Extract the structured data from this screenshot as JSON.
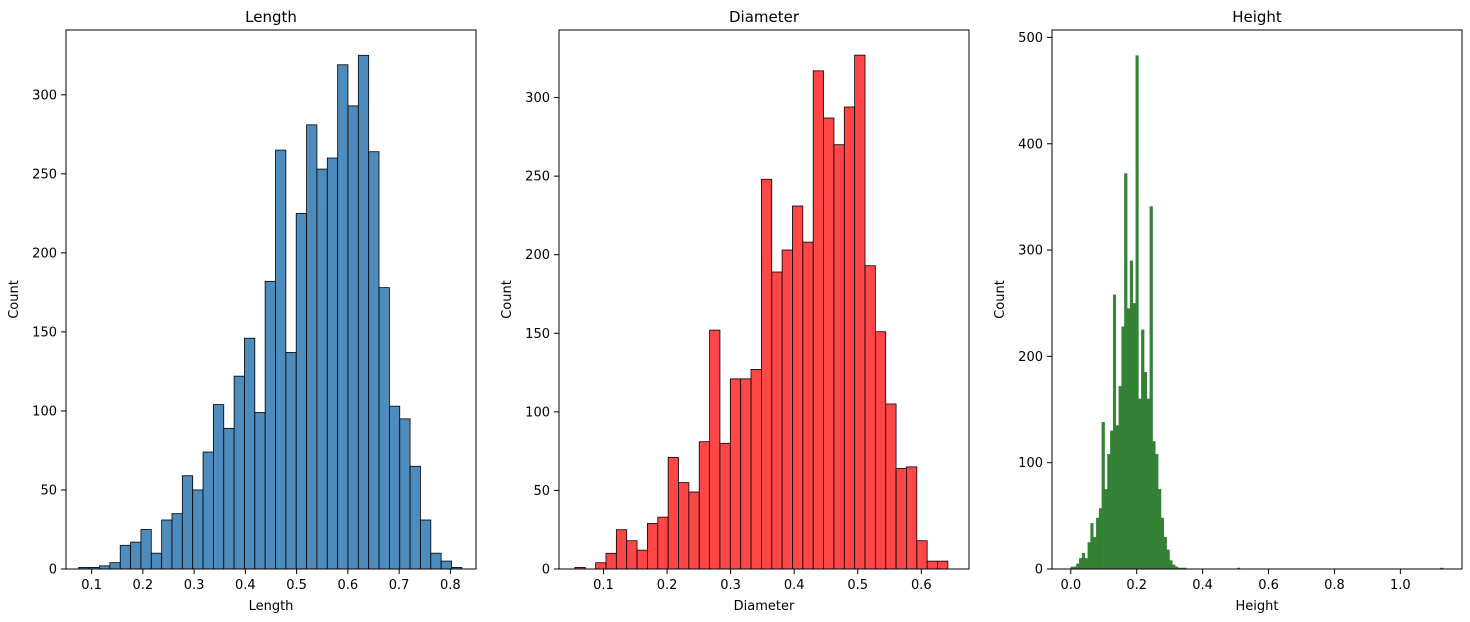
{
  "chart_data": [
    {
      "type": "bar",
      "title": "Length",
      "xlabel": "Length",
      "ylabel": "Count",
      "xlim": [
        0.05,
        0.85
      ],
      "ylim": [
        0,
        341
      ],
      "xticks": [
        0.1,
        0.2,
        0.3,
        0.4,
        0.5,
        0.6,
        0.7,
        0.8
      ],
      "xtick_labels": [
        "0.1",
        "0.2",
        "0.3",
        "0.4",
        "0.5",
        "0.6",
        "0.7",
        "0.8"
      ],
      "yticks": [
        0,
        50,
        100,
        150,
        200,
        250,
        300
      ],
      "ytick_labels": [
        "0",
        "50",
        "100",
        "150",
        "200",
        "250",
        "300"
      ],
      "color": "#3a7fb5",
      "bin_start": 0.075,
      "bin_width": 0.0202,
      "values": [
        1,
        1,
        2,
        4,
        15,
        17,
        25,
        10,
        31,
        35,
        59,
        50,
        74,
        104,
        89,
        122,
        146,
        99,
        182,
        265,
        137,
        225,
        281,
        253,
        260,
        319,
        293,
        325,
        264,
        178,
        103,
        95,
        65,
        31,
        10,
        5,
        1
      ],
      "grid": false
    },
    {
      "type": "bar",
      "title": "Diameter",
      "xlabel": "Diameter",
      "ylabel": "Count",
      "xlim": [
        0.03,
        0.675
      ],
      "ylim": [
        0,
        343
      ],
      "xticks": [
        0.1,
        0.2,
        0.3,
        0.4,
        0.5,
        0.6
      ],
      "xtick_labels": [
        "0.1",
        "0.2",
        "0.3",
        "0.4",
        "0.5",
        "0.6"
      ],
      "yticks": [
        0,
        50,
        100,
        150,
        200,
        250,
        300
      ],
      "ytick_labels": [
        "0",
        "50",
        "100",
        "150",
        "200",
        "250",
        "300"
      ],
      "color": "#ff3333",
      "bin_start": 0.055,
      "bin_width": 0.0163,
      "values": [
        1,
        0,
        4,
        10,
        25,
        18,
        12,
        29,
        33,
        71,
        55,
        49,
        81,
        152,
        80,
        121,
        121,
        127,
        248,
        189,
        203,
        231,
        208,
        317,
        287,
        270,
        294,
        327,
        193,
        151,
        105,
        64,
        65,
        18,
        5,
        5
      ],
      "grid": false
    },
    {
      "type": "bar",
      "title": "Height",
      "xlabel": "Height",
      "ylabel": "Count",
      "xlim": [
        -0.057,
        1.187
      ],
      "ylim": [
        0,
        507
      ],
      "xticks": [
        0.0,
        0.2,
        0.4,
        0.6,
        0.8,
        1.0
      ],
      "xtick_labels": [
        "0.0",
        "0.2",
        "0.4",
        "0.6",
        "0.8",
        "1.0"
      ],
      "yticks": [
        0,
        100,
        200,
        300,
        400,
        500
      ],
      "ytick_labels": [
        "0",
        "100",
        "200",
        "300",
        "400",
        "500"
      ],
      "color": "#2a7a2a",
      "bin_start": 0.0,
      "bin_width": 0.00856,
      "values": [
        2,
        2,
        5,
        10,
        15,
        10,
        25,
        43,
        30,
        48,
        57,
        138,
        75,
        108,
        130,
        258,
        135,
        172,
        228,
        372,
        245,
        290,
        250,
        483,
        160,
        225,
        185,
        160,
        341,
        120,
        108,
        75,
        48,
        30,
        18,
        8,
        4,
        2,
        1,
        1,
        1,
        0,
        0,
        0,
        0,
        0,
        0,
        0,
        0,
        0,
        0,
        0,
        0,
        0,
        0,
        0,
        0,
        0,
        0,
        1,
        0,
        0,
        0,
        0,
        0,
        0,
        0,
        0,
        0,
        0,
        0,
        0,
        0,
        0,
        0,
        0,
        0,
        0,
        0,
        0,
        0,
        0,
        0,
        0,
        0,
        0,
        0,
        0,
        0,
        0,
        0,
        0,
        0,
        0,
        0,
        0,
        0,
        0,
        0,
        0,
        0,
        0,
        0,
        0,
        0,
        0,
        0,
        0,
        0,
        0,
        0,
        0,
        0,
        0,
        0,
        0,
        0,
        0,
        0,
        0,
        0,
        0,
        0,
        0,
        0,
        0,
        0,
        0,
        0,
        0,
        0,
        1
      ],
      "grid": false
    }
  ]
}
